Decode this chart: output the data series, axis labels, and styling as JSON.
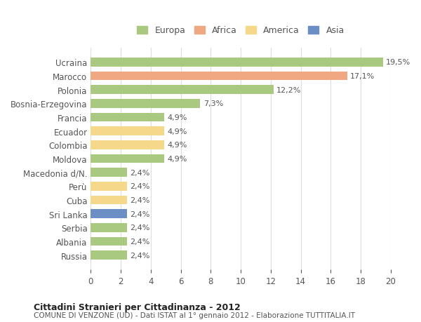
{
  "categories": [
    "Ucraina",
    "Marocco",
    "Polonia",
    "Bosnia-Erzegovina",
    "Francia",
    "Ecuador",
    "Colombia",
    "Moldova",
    "Macedonia d/N.",
    "Perù",
    "Cuba",
    "Sri Lanka",
    "Serbia",
    "Albania",
    "Russia"
  ],
  "values": [
    19.5,
    17.1,
    12.2,
    7.3,
    4.9,
    4.9,
    4.9,
    4.9,
    2.4,
    2.4,
    2.4,
    2.4,
    2.4,
    2.4,
    2.4
  ],
  "labels": [
    "19,5%",
    "17,1%",
    "12,2%",
    "7,3%",
    "4,9%",
    "4,9%",
    "4,9%",
    "4,9%",
    "2,4%",
    "2,4%",
    "2,4%",
    "2,4%",
    "2,4%",
    "2,4%",
    "2,4%"
  ],
  "continents": [
    "Europa",
    "Africa",
    "Europa",
    "Europa",
    "Europa",
    "America",
    "America",
    "Europa",
    "Europa",
    "America",
    "America",
    "Asia",
    "Europa",
    "Europa",
    "Europa"
  ],
  "colors": {
    "Europa": "#a8c97f",
    "Africa": "#f0a882",
    "America": "#f5d88a",
    "Asia": "#6b8fc4"
  },
  "legend_order": [
    "Europa",
    "Africa",
    "America",
    "Asia"
  ],
  "title": "Cittadini Stranieri per Cittadinanza - 2012",
  "subtitle": "COMUNE DI VENZONE (UD) - Dati ISTAT al 1° gennaio 2012 - Elaborazione TUTTITALIA.IT",
  "xlim": [
    0,
    20
  ],
  "xticks": [
    0,
    2,
    4,
    6,
    8,
    10,
    12,
    14,
    16,
    18,
    20
  ],
  "background_color": "#ffffff",
  "grid_color": "#dddddd"
}
